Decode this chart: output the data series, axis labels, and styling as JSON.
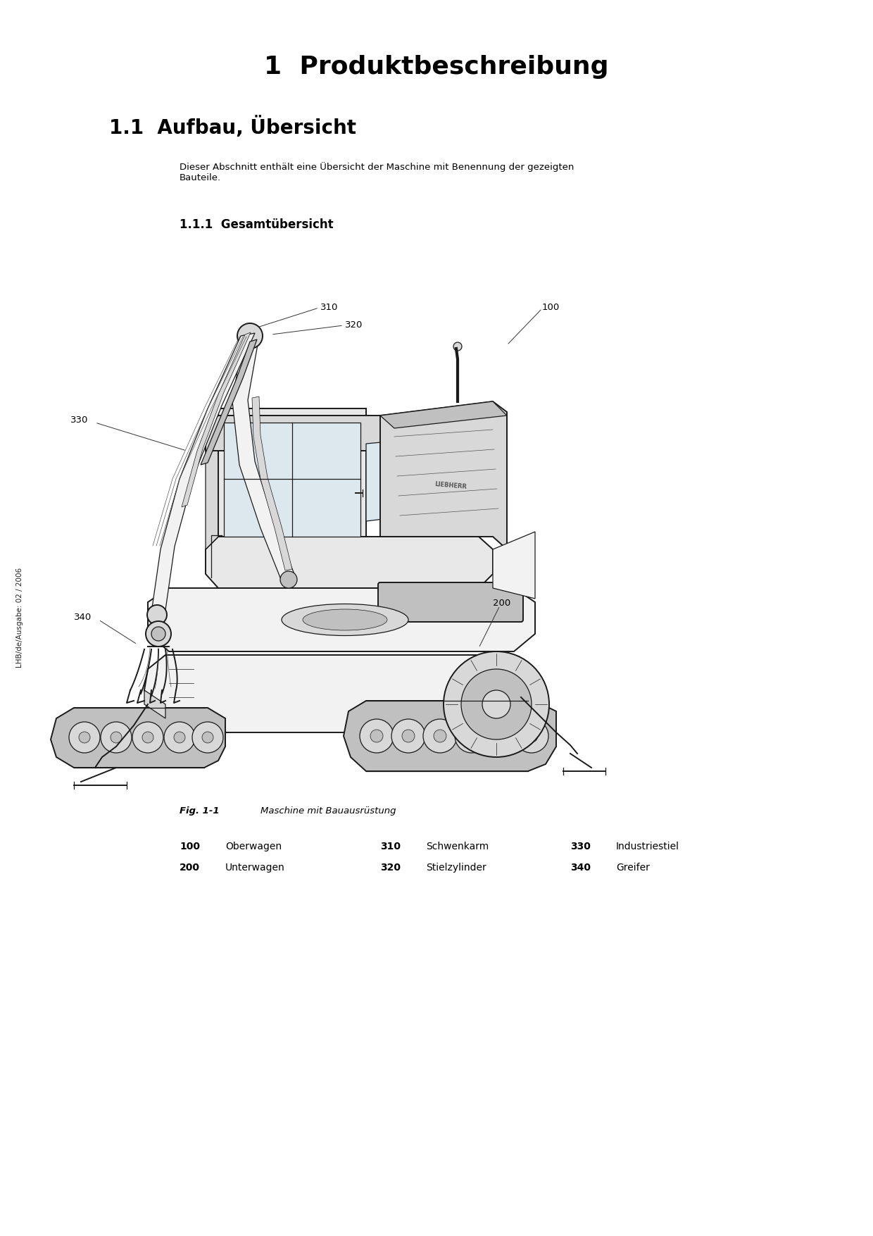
{
  "bg_color": "#ffffff",
  "page_width": 12.4,
  "page_height": 17.55,
  "title1": "1  Produktbeschreibung",
  "title1_fontsize": 26,
  "title1_fontweight": "bold",
  "title2": "1.1  Aufbau, Übersicht",
  "title2_fontsize": 20,
  "title2_fontweight": "bold",
  "body_text": "Dieser Abschnitt enthält eine Übersicht der Maschine mit Benennung der gezeigten\nBauteile.",
  "body_fontsize": 9.5,
  "section_title": "1.1.1  Gesamtübersicht",
  "section_fontsize": 12,
  "section_fontweight": "bold",
  "fig_caption_bold": "Fig. 1-1",
  "fig_caption_text": "Maschine mit Bauausrüstung",
  "fig_caption_fontsize": 9.5,
  "labels_row1": [
    {
      "num": "100",
      "desc": "Oberwagen"
    },
    {
      "num": "310",
      "desc": "Schwenkarm"
    },
    {
      "num": "330",
      "desc": "Industriestiel"
    }
  ],
  "labels_row2": [
    {
      "num": "200",
      "desc": "Unterwagen"
    },
    {
      "num": "320",
      "desc": "Stielzylinder"
    },
    {
      "num": "340",
      "desc": "Greifer"
    }
  ],
  "label_fontsize": 10,
  "side_text": "LHB/de/Ausgabe: 02 / 2006",
  "side_fontsize": 7.5,
  "annotation_fontsize": 9.5,
  "lc": "#1a1a1a",
  "lc_mid": "#555555",
  "lc_light": "#aaaaaa"
}
